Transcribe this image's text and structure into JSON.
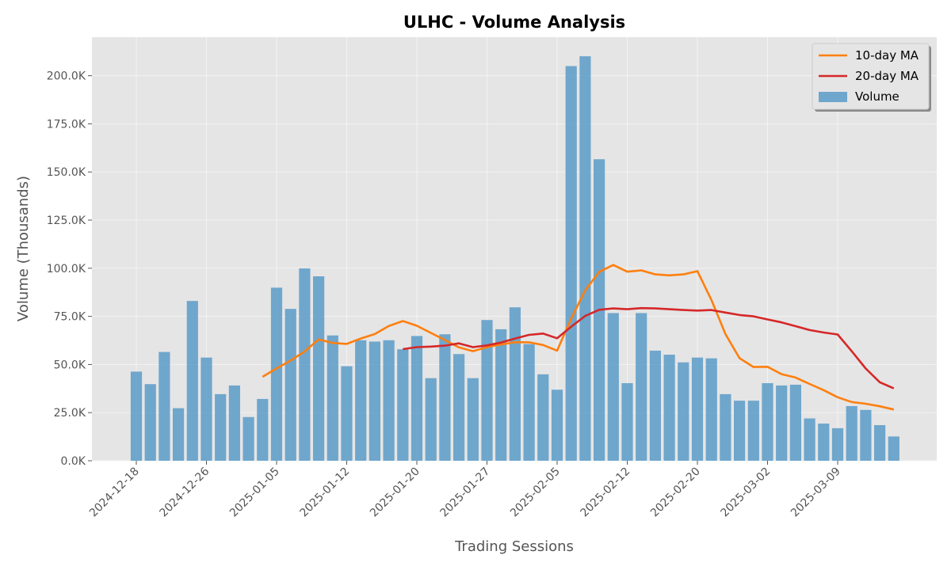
{
  "chart_data": {
    "type": "bar",
    "title": "ULHC - Volume Analysis",
    "xlabel": "Trading Sessions",
    "ylabel": "Volume (Thousands)",
    "ylim": [
      0,
      220
    ],
    "grid": true,
    "legend_position": "top-right",
    "x_ticks": [
      {
        "index": 0,
        "label": "2024-12-18"
      },
      {
        "index": 5,
        "label": "2024-12-26"
      },
      {
        "index": 10,
        "label": "2025-01-05"
      },
      {
        "index": 15,
        "label": "2025-01-12"
      },
      {
        "index": 20,
        "label": "2025-01-20"
      },
      {
        "index": 25,
        "label": "2025-01-27"
      },
      {
        "index": 30,
        "label": "2025-02-05"
      },
      {
        "index": 35,
        "label": "2025-02-12"
      },
      {
        "index": 40,
        "label": "2025-02-20"
      },
      {
        "index": 45,
        "label": "2025-03-02"
      },
      {
        "index": 50,
        "label": "2025-03-09"
      }
    ],
    "y_ticks": [
      {
        "value": 0,
        "label": "0.0K"
      },
      {
        "value": 25,
        "label": "25.0K"
      },
      {
        "value": 50,
        "label": "50.0K"
      },
      {
        "value": 75,
        "label": "75.0K"
      },
      {
        "value": 100,
        "label": "100.0K"
      },
      {
        "value": 125,
        "label": "125.0K"
      },
      {
        "value": 150,
        "label": "150.0K"
      },
      {
        "value": 175,
        "label": "175.0K"
      },
      {
        "value": 200,
        "label": "200.0K"
      }
    ],
    "series": [
      {
        "name": "Volume",
        "kind": "bar",
        "color": "#5b9bc8",
        "values": [
          46.3,
          39.8,
          56.5,
          27.3,
          83.0,
          53.6,
          34.6,
          39.1,
          22.7,
          32.1,
          89.9,
          78.9,
          99.9,
          95.8,
          65.1,
          49.1,
          62.6,
          61.9,
          62.6,
          57.9,
          64.8,
          42.9,
          65.7,
          55.4,
          42.9,
          73.1,
          68.3,
          79.7,
          60.6,
          44.9,
          36.9,
          205.0,
          210.1,
          156.6,
          76.7,
          40.3,
          76.7,
          57.2,
          55.1,
          51.1,
          53.6,
          53.2,
          34.6,
          31.2,
          31.2,
          40.3,
          39.1,
          39.5,
          22.0,
          19.3,
          16.9,
          28.4,
          26.4,
          18.5,
          12.6
        ]
      },
      {
        "name": "10-day MA",
        "kind": "line",
        "color": "#ff7f0e",
        "start_index": 9,
        "values": [
          43.6,
          48.0,
          52.0,
          56.8,
          63.0,
          61.2,
          60.7,
          63.5,
          65.8,
          70.0,
          72.6,
          70.1,
          66.4,
          62.7,
          58.9,
          56.9,
          59.0,
          60.4,
          61.6,
          61.5,
          60.1,
          57.2,
          73.8,
          88.5,
          98.1,
          101.7,
          98.2,
          98.9,
          96.8,
          96.3,
          96.8,
          98.5,
          83.5,
          65.8,
          53.3,
          48.7,
          48.8,
          45.0,
          43.2,
          39.9,
          36.7,
          33.0,
          30.5,
          29.6,
          28.3,
          26.6
        ]
      },
      {
        "name": "20-day MA",
        "kind": "line",
        "color": "#d62728",
        "start_index": 19,
        "values": [
          58.0,
          59.0,
          59.3,
          59.8,
          61.0,
          59.0,
          59.9,
          61.4,
          63.5,
          65.4,
          66.1,
          63.6,
          69.6,
          75.2,
          78.4,
          79.1,
          78.7,
          79.3,
          79.1,
          78.7,
          78.3,
          78.0,
          78.3,
          77.0,
          75.7,
          75.0,
          73.4,
          71.9,
          69.9,
          67.9,
          66.6,
          65.6,
          56.9,
          47.9,
          40.8,
          37.6
        ]
      }
    ]
  }
}
